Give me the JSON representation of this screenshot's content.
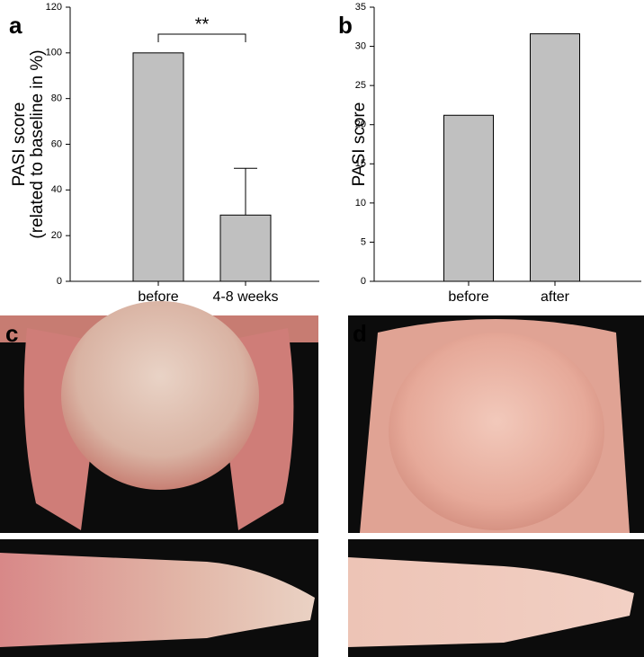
{
  "chart_data": [
    {
      "type": "bar",
      "panel": "a",
      "ylabel": [
        "PASI score",
        "(related to baseline in %)"
      ],
      "categories": [
        "before",
        "4-8 weeks"
      ],
      "values": [
        100,
        29
      ],
      "errors": [
        null,
        20.5
      ],
      "color": "#c0c0c0",
      "ylim": [
        0,
        120
      ],
      "yticks": [
        0,
        20,
        40,
        60,
        80,
        100,
        120
      ],
      "annotation": "**"
    },
    {
      "type": "bar",
      "panel": "b",
      "ylabel": [
        "PASI score"
      ],
      "categories": [
        "before",
        "after"
      ],
      "values": [
        21.2,
        31.6
      ],
      "color": "#c0c0c0",
      "ylim": [
        0,
        35
      ],
      "yticks": [
        0,
        5,
        10,
        15,
        20,
        25,
        30,
        35
      ]
    }
  ],
  "photo_panels": [
    {
      "label": "c"
    },
    {
      "label": "d"
    }
  ]
}
